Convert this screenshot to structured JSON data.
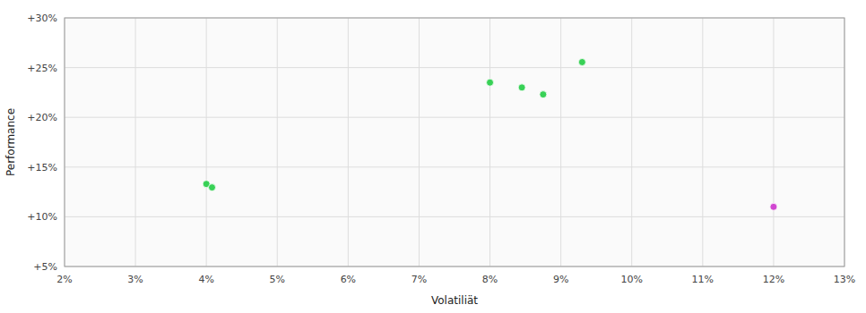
{
  "chart_data": {
    "type": "scatter",
    "x_label": "Volatiliät",
    "y_label": "Performance",
    "xlim": [
      0.02,
      0.13
    ],
    "ylim": [
      0.05,
      0.3
    ],
    "xticks": [
      {
        "value": 0.02,
        "label": "2%"
      },
      {
        "value": 0.03,
        "label": "3%"
      },
      {
        "value": 0.04,
        "label": "4%"
      },
      {
        "value": 0.05,
        "label": "5%"
      },
      {
        "value": 0.06,
        "label": "6%"
      },
      {
        "value": 0.07,
        "label": "7%"
      },
      {
        "value": 0.08,
        "label": "8%"
      },
      {
        "value": 0.09,
        "label": "9%"
      },
      {
        "value": 0.1,
        "label": "10%"
      },
      {
        "value": 0.11,
        "label": "11%"
      },
      {
        "value": 0.12,
        "label": "12%"
      },
      {
        "value": 0.13,
        "label": "13%"
      }
    ],
    "yticks": [
      {
        "value": 0.05,
        "label": "+5%"
      },
      {
        "value": 0.1,
        "label": "+10%"
      },
      {
        "value": 0.15,
        "label": "+15%"
      },
      {
        "value": 0.2,
        "label": "+20%"
      },
      {
        "value": 0.25,
        "label": "+25%"
      },
      {
        "value": 0.3,
        "label": "+30%"
      }
    ],
    "grid": true,
    "series": [
      {
        "color": "#22cc44",
        "x": [
          0.08,
          0.0845,
          0.0875,
          0.093,
          0.04,
          0.0408
        ],
        "values": [
          0.235,
          0.23,
          0.223,
          0.2555,
          0.133,
          0.1295
        ]
      },
      {
        "color": "#cc33cc",
        "x": [
          0.12
        ],
        "values": [
          0.11
        ]
      }
    ]
  }
}
